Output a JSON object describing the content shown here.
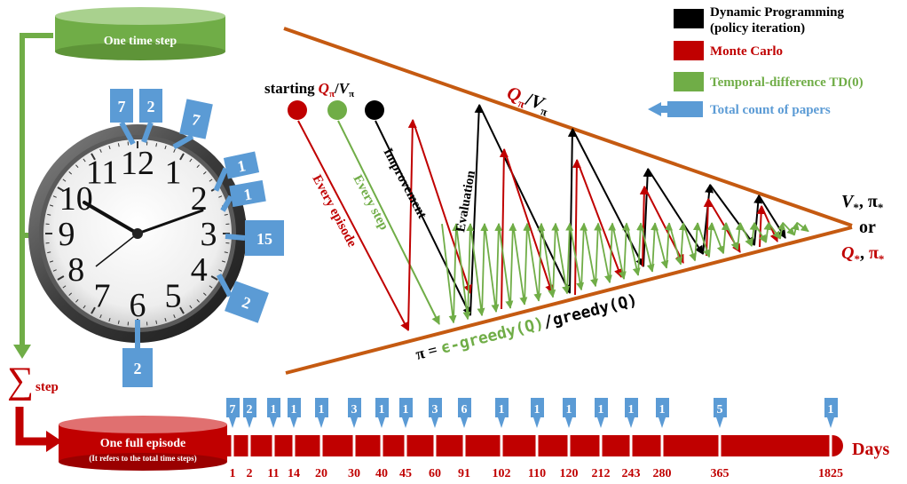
{
  "colors": {
    "dp": "#000000",
    "mc": "#c00000",
    "td": "#70ad47",
    "papers": "#5b9bd5",
    "triangle": "#c55a11",
    "cylinder_green": "#70ad47",
    "cylinder_red": "#c00000"
  },
  "legend": {
    "dp_label_1": "Dynamic Programming",
    "dp_label_2": "(policy iteration)",
    "mc_label": "Monte Carlo",
    "td_label": "Temporal-difference TD(0)",
    "papers_label": "Total count of papers"
  },
  "top_cylinder": "One time step",
  "sum_symbol": "∑",
  "sum_label": "step",
  "bottom_cylinder": {
    "title": "One full episode",
    "subtitle": "(It refers to the total time steps)"
  },
  "days_label": "Days",
  "triangle": {
    "starting": "starting",
    "start_q": "Q",
    "start_q_sub": "π",
    "start_slash": "/",
    "start_v": "V",
    "start_v_sub": "π",
    "top_q": "Q",
    "top_q_sub": "π",
    "top_slash": "/",
    "top_v": "V",
    "top_v_sub": "π",
    "tip_v": "V",
    "tip_v_sub": "*",
    "tip_v_sep": ", ",
    "tip_pi": "π",
    "tip_pi_sub": "*",
    "tip_or": "or",
    "tip_q": "Q",
    "tip_q_sub": "*",
    "tip_q_sep": ", ",
    "tip_pi2": "π",
    "tip_pi2_sub": "*",
    "bottom_pi": "π = ",
    "bottom_eps": "ϵ-greedy(Q)",
    "bottom_rest": "/greedy(Q)",
    "every_episode": "Every episode",
    "every_step": "Every step",
    "improvement": "Improvement",
    "evaluation": "Evaluation"
  },
  "clock": {
    "numbers": [
      "12",
      "1",
      "2",
      "3",
      "4",
      "5",
      "6",
      "7",
      "8",
      "9",
      "10",
      "11"
    ],
    "paper_counts": [
      {
        "value": "7",
        "near": "12"
      },
      {
        "value": "2",
        "near": "12"
      },
      {
        "value": "7",
        "near": "1"
      },
      {
        "value": "1",
        "near": "2"
      },
      {
        "value": "1",
        "near": "2"
      },
      {
        "value": "15",
        "near": "3"
      },
      {
        "value": "2",
        "near": "4"
      },
      {
        "value": "2",
        "near": "6"
      }
    ]
  },
  "timeline": [
    {
      "day": "1",
      "count": "7"
    },
    {
      "day": "2",
      "count": "2"
    },
    {
      "day": "11",
      "count": "1"
    },
    {
      "day": "14",
      "count": "1"
    },
    {
      "day": "20",
      "count": "1"
    },
    {
      "day": "30",
      "count": "3"
    },
    {
      "day": "40",
      "count": "1"
    },
    {
      "day": "45",
      "count": "1"
    },
    {
      "day": "60",
      "count": "3"
    },
    {
      "day": "91",
      "count": "6"
    },
    {
      "day": "102",
      "count": "1"
    },
    {
      "day": "110",
      "count": "1"
    },
    {
      "day": "120",
      "count": "1"
    },
    {
      "day": "212",
      "count": "1"
    },
    {
      "day": "243",
      "count": "1"
    },
    {
      "day": "280",
      "count": "1"
    },
    {
      "day": "365",
      "count": "5"
    },
    {
      "day": "1825",
      "count": "1"
    }
  ]
}
